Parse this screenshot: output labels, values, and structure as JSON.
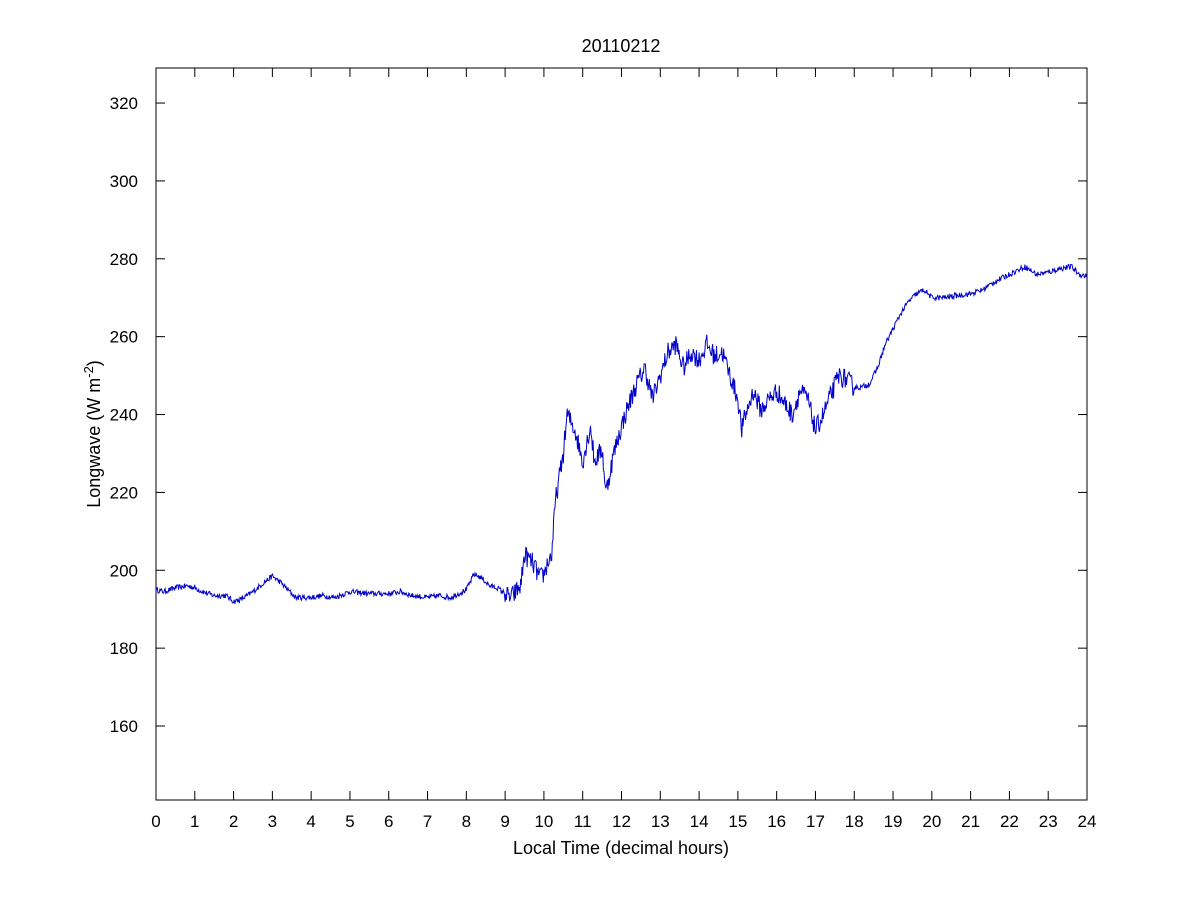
{
  "chart_data": {
    "type": "line",
    "title": "20110212",
    "xlabel": "Local Time (decimal hours)",
    "ylabel_main": "Longwave (W m",
    "ylabel_sup": "-2",
    "ylabel_end": ")",
    "xlim": [
      0,
      24
    ],
    "ylim": [
      141,
      329
    ],
    "xticks": [
      0,
      1,
      2,
      3,
      4,
      5,
      6,
      7,
      8,
      9,
      10,
      11,
      12,
      13,
      14,
      15,
      16,
      17,
      18,
      19,
      20,
      21,
      22,
      23,
      24
    ],
    "yticks": [
      160,
      180,
      200,
      220,
      240,
      260,
      280,
      300,
      320
    ],
    "grid": false,
    "line_color": "#0000c8",
    "series": [
      {
        "x": [
          0,
          0.2,
          0.5,
          0.8,
          1.0,
          1.2,
          1.5,
          1.8,
          2.0,
          2.2,
          2.5,
          2.8,
          3.0,
          3.2,
          3.4,
          3.6,
          4.0,
          4.3,
          4.6,
          5.0,
          5.5,
          6.0,
          6.3,
          6.6,
          7.0,
          7.3,
          7.6,
          7.8,
          8.0,
          8.2,
          8.4,
          8.6,
          8.8,
          9.0,
          9.1,
          9.2,
          9.4,
          9.5,
          9.7,
          9.9,
          10.0,
          10.1,
          10.2,
          10.3,
          10.4,
          10.5,
          10.6,
          10.8,
          11.0,
          11.2,
          11.3,
          11.5,
          11.6,
          11.8,
          12.0,
          12.2,
          12.4,
          12.6,
          12.8,
          13.0,
          13.2,
          13.4,
          13.6,
          13.8,
          14.0,
          14.2,
          14.4,
          14.6,
          14.8,
          15.0,
          15.1,
          15.2,
          15.4,
          15.6,
          15.8,
          16.0,
          16.2,
          16.4,
          16.6,
          16.8,
          17.0,
          17.2,
          17.4,
          17.6,
          17.8,
          18.0,
          18.2,
          18.4,
          18.6,
          18.8,
          19.0,
          19.2,
          19.4,
          19.6,
          19.8,
          20.0,
          20.3,
          20.6,
          21.0,
          21.3,
          21.6,
          22.0,
          22.2,
          22.4,
          22.7,
          23.0,
          23.3,
          23.6,
          23.8,
          24.0
        ],
        "y": [
          195,
          194.5,
          195.5,
          196,
          195.5,
          194.5,
          193.5,
          193.5,
          192,
          192.5,
          194.5,
          197,
          198.5,
          197,
          195,
          193,
          193,
          193.5,
          193,
          194.5,
          194,
          194,
          194.5,
          193.5,
          193,
          193.5,
          193,
          194,
          195,
          199,
          198,
          196,
          195.5,
          194,
          193,
          193.5,
          196,
          204,
          202,
          198,
          199,
          202,
          204,
          218,
          224,
          230,
          240,
          236,
          228,
          237,
          228,
          231,
          220,
          230,
          237,
          243,
          248,
          252,
          244,
          250,
          256,
          258,
          252,
          256,
          254,
          258,
          255,
          256,
          250,
          244,
          236,
          240,
          246,
          241,
          244,
          246,
          243,
          240,
          246,
          244,
          236,
          240,
          245,
          250,
          249,
          247,
          247,
          248,
          252,
          258,
          262,
          266,
          269,
          271,
          272,
          270,
          270,
          270.5,
          271,
          272,
          274,
          276,
          277,
          278,
          276,
          276.5,
          277.5,
          278,
          276,
          275.5
        ]
      }
    ]
  }
}
